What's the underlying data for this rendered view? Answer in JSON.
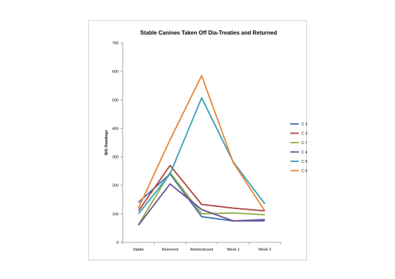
{
  "chart_data": {
    "type": "line",
    "title": "Stable Canines Taken Off Dia-Treaties and Returned",
    "xlabel": "",
    "ylabel": "B/G Readings",
    "categories": [
      "Stable",
      "Removed",
      "Reintroduced",
      "Week 1",
      "Week 2"
    ],
    "ylim": [
      0,
      700
    ],
    "yticks": [
      0,
      100,
      200,
      300,
      400,
      500,
      600,
      700
    ],
    "grid": "off",
    "legend": "right",
    "series": [
      {
        "name": "C 2",
        "color": "#4a6fb5",
        "values": [
          140,
          240,
          90,
          75,
          75
        ]
      },
      {
        "name": "C 3",
        "color": "#b04a44",
        "values": [
          110,
          270,
          133,
          120,
          110
        ]
      },
      {
        "name": "C 7",
        "color": "#8db04a",
        "values": [
          62,
          245,
          100,
          103,
          97
        ]
      },
      {
        "name": "C 4",
        "color": "#6e5396",
        "values": [
          60,
          205,
          115,
          75,
          80
        ]
      },
      {
        "name": "C 5",
        "color": "#3da1b8",
        "values": [
          100,
          240,
          507,
          282,
          135
        ]
      },
      {
        "name": "C 6",
        "color": "#e68a3a",
        "values": [
          120,
          360,
          585,
          280,
          110
        ]
      }
    ]
  }
}
